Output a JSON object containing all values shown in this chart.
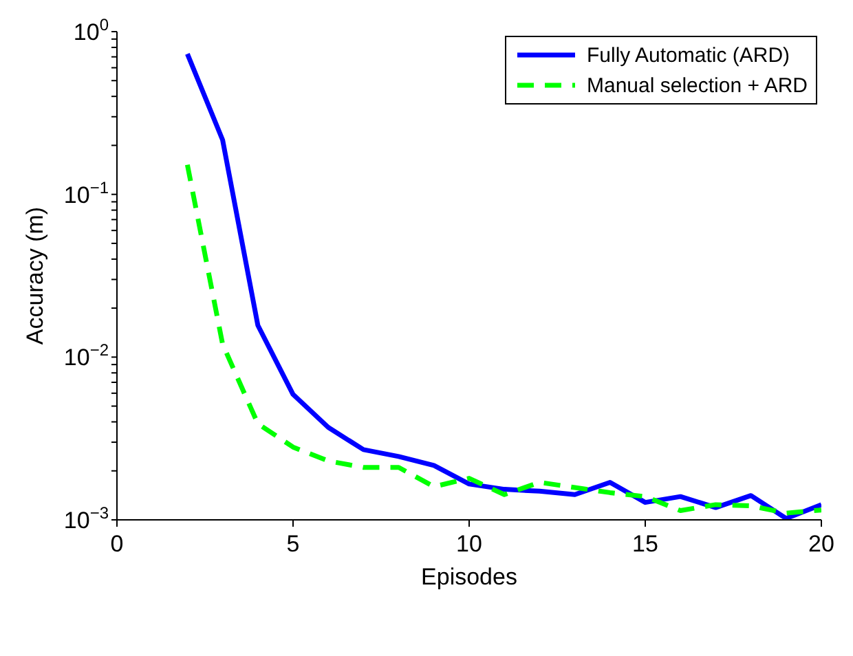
{
  "chart_data": {
    "type": "line",
    "xlabel": "Episodes",
    "ylabel": "Accuracy (m)",
    "log": "y",
    "x": [
      2,
      3,
      4,
      5,
      6,
      7,
      8,
      9,
      10,
      11,
      12,
      13,
      14,
      15,
      16,
      17,
      18,
      19,
      20
    ],
    "series": [
      {
        "name": "Fully Automatic (ARD)",
        "color": "#0000ff",
        "line_style": "solid",
        "values": [
          0.73,
          0.216,
          0.0157,
          0.0059,
          0.0037,
          0.0027,
          0.00245,
          0.00216,
          0.00166,
          0.00154,
          0.0015,
          0.00143,
          0.0017,
          0.00128,
          0.00139,
          0.00119,
          0.00141,
          0.00102,
          0.00124
        ]
      },
      {
        "name": "Manual selection + ARD",
        "color": "#00ff00",
        "line_style": "dashed",
        "values": [
          0.152,
          0.012,
          0.0039,
          0.0028,
          0.0023,
          0.0021,
          0.0021,
          0.0016,
          0.0018,
          0.00143,
          0.0017,
          0.00158,
          0.00147,
          0.00139,
          0.00114,
          0.00124,
          0.00122,
          0.0011,
          0.00115
        ]
      }
    ],
    "xlim": [
      0,
      20
    ],
    "xticks": [
      0,
      5,
      10,
      15,
      20
    ],
    "ylim": [
      0.001,
      1
    ],
    "yticks": [
      {
        "value": 0.001,
        "label": "10$^{−3}$"
      },
      {
        "value": 0.002,
        "label": null
      },
      {
        "value": 0.003,
        "label": null
      },
      {
        "value": 0.004,
        "label": null
      },
      {
        "value": 0.005,
        "label": null
      },
      {
        "value": 0.006,
        "label": null
      },
      {
        "value": 0.007,
        "label": null
      },
      {
        "value": 0.008,
        "label": null
      },
      {
        "value": 0.009,
        "label": null
      },
      {
        "value": 0.01,
        "label": "10$^{−2}$"
      },
      {
        "value": 0.02,
        "label": null
      },
      {
        "value": 0.03,
        "label": null
      },
      {
        "value": 0.04,
        "label": null
      },
      {
        "value": 0.05,
        "label": null
      },
      {
        "value": 0.06,
        "label": null
      },
      {
        "value": 0.07,
        "label": null
      },
      {
        "value": 0.08,
        "label": null
      },
      {
        "value": 0.09,
        "label": null
      },
      {
        "value": 0.1,
        "label": "10$^{−1}$"
      },
      {
        "value": 0.2,
        "label": null
      },
      {
        "value": 0.3,
        "label": null
      },
      {
        "value": 0.4,
        "label": null
      },
      {
        "value": 0.5,
        "label": null
      },
      {
        "value": 0.6,
        "label": null
      },
      {
        "value": 0.7,
        "label": null
      },
      {
        "value": 0.8,
        "label": null
      },
      {
        "value": 0.9,
        "label": null
      },
      {
        "value": 1,
        "label": "10$^{0}$"
      }
    ],
    "legend": "top right",
    "marker": "none"
  }
}
